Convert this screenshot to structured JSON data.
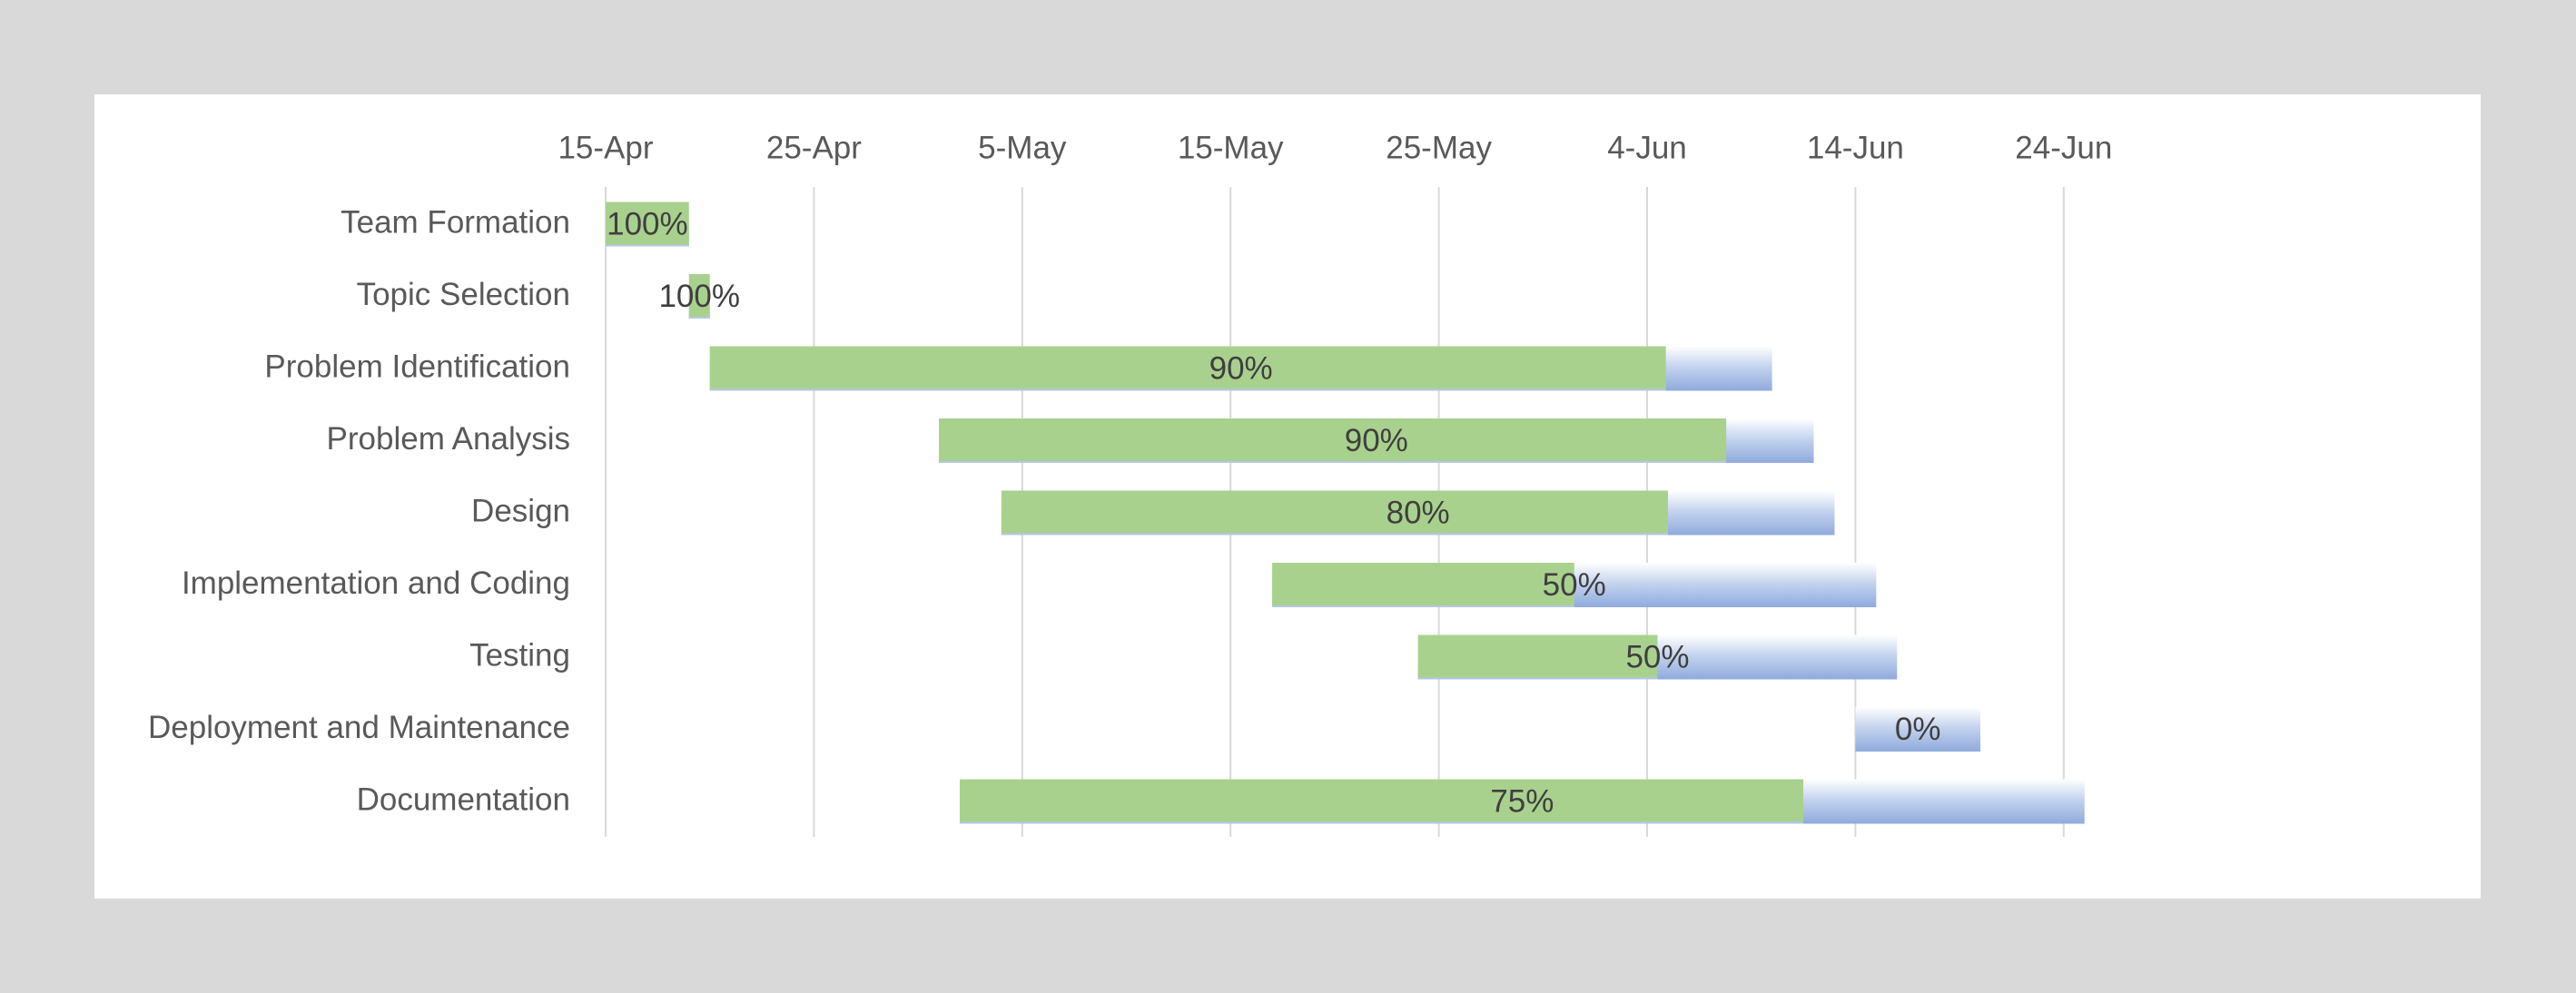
{
  "chart_data": {
    "type": "bar",
    "orientation": "horizontal-gantt",
    "legend": false,
    "grid": "vertical",
    "x_axis": {
      "position": "top",
      "min": "2020-04-15",
      "max": "2020-06-29",
      "ticks": [
        {
          "date": "2020-04-15",
          "label": "15-Apr"
        },
        {
          "date": "2020-04-25",
          "label": "25-Apr"
        },
        {
          "date": "2020-05-05",
          "label": "5-May"
        },
        {
          "date": "2020-05-15",
          "label": "15-May"
        },
        {
          "date": "2020-05-25",
          "label": "25-May"
        },
        {
          "date": "2020-06-04",
          "label": "4-Jun"
        },
        {
          "date": "2020-06-14",
          "label": "14-Jun"
        },
        {
          "date": "2020-06-24",
          "label": "24-Jun"
        }
      ]
    },
    "colors": {
      "completed": "#a9d18e",
      "remaining": "#b4c7e7",
      "remaining_edge": "#8faadc",
      "grid": "#d9d9d9",
      "text": "#595959"
    },
    "tasks": [
      {
        "name": "Team Formation",
        "start": "2020-04-15",
        "end": "2020-04-19",
        "progress": 100,
        "label": "100%"
      },
      {
        "name": "Topic Selection",
        "start": "2020-04-19",
        "end": "2020-04-20",
        "progress": 100,
        "label": "100%"
      },
      {
        "name": "Problem Identification",
        "start": "2020-04-20",
        "end": "2020-06-10",
        "progress": 90,
        "label": "90%"
      },
      {
        "name": "Problem Analysis",
        "start": "2020-05-01",
        "end": "2020-06-12",
        "progress": 90,
        "label": "90%"
      },
      {
        "name": "Design",
        "start": "2020-05-04",
        "end": "2020-06-13",
        "progress": 80,
        "label": "80%"
      },
      {
        "name": "Implementation and Coding",
        "start": "2020-05-17",
        "end": "2020-06-15",
        "progress": 50,
        "label": "50%"
      },
      {
        "name": "Testing",
        "start": "2020-05-24",
        "end": "2020-06-16",
        "progress": 50,
        "label": "50%"
      },
      {
        "name": "Deployment and Maintenance",
        "start": "2020-06-14",
        "end": "2020-06-20",
        "progress": 0,
        "label": "0%"
      },
      {
        "name": "Documentation",
        "start": "2020-05-02",
        "end": "2020-06-25",
        "progress": 75,
        "label": "75%"
      }
    ]
  }
}
